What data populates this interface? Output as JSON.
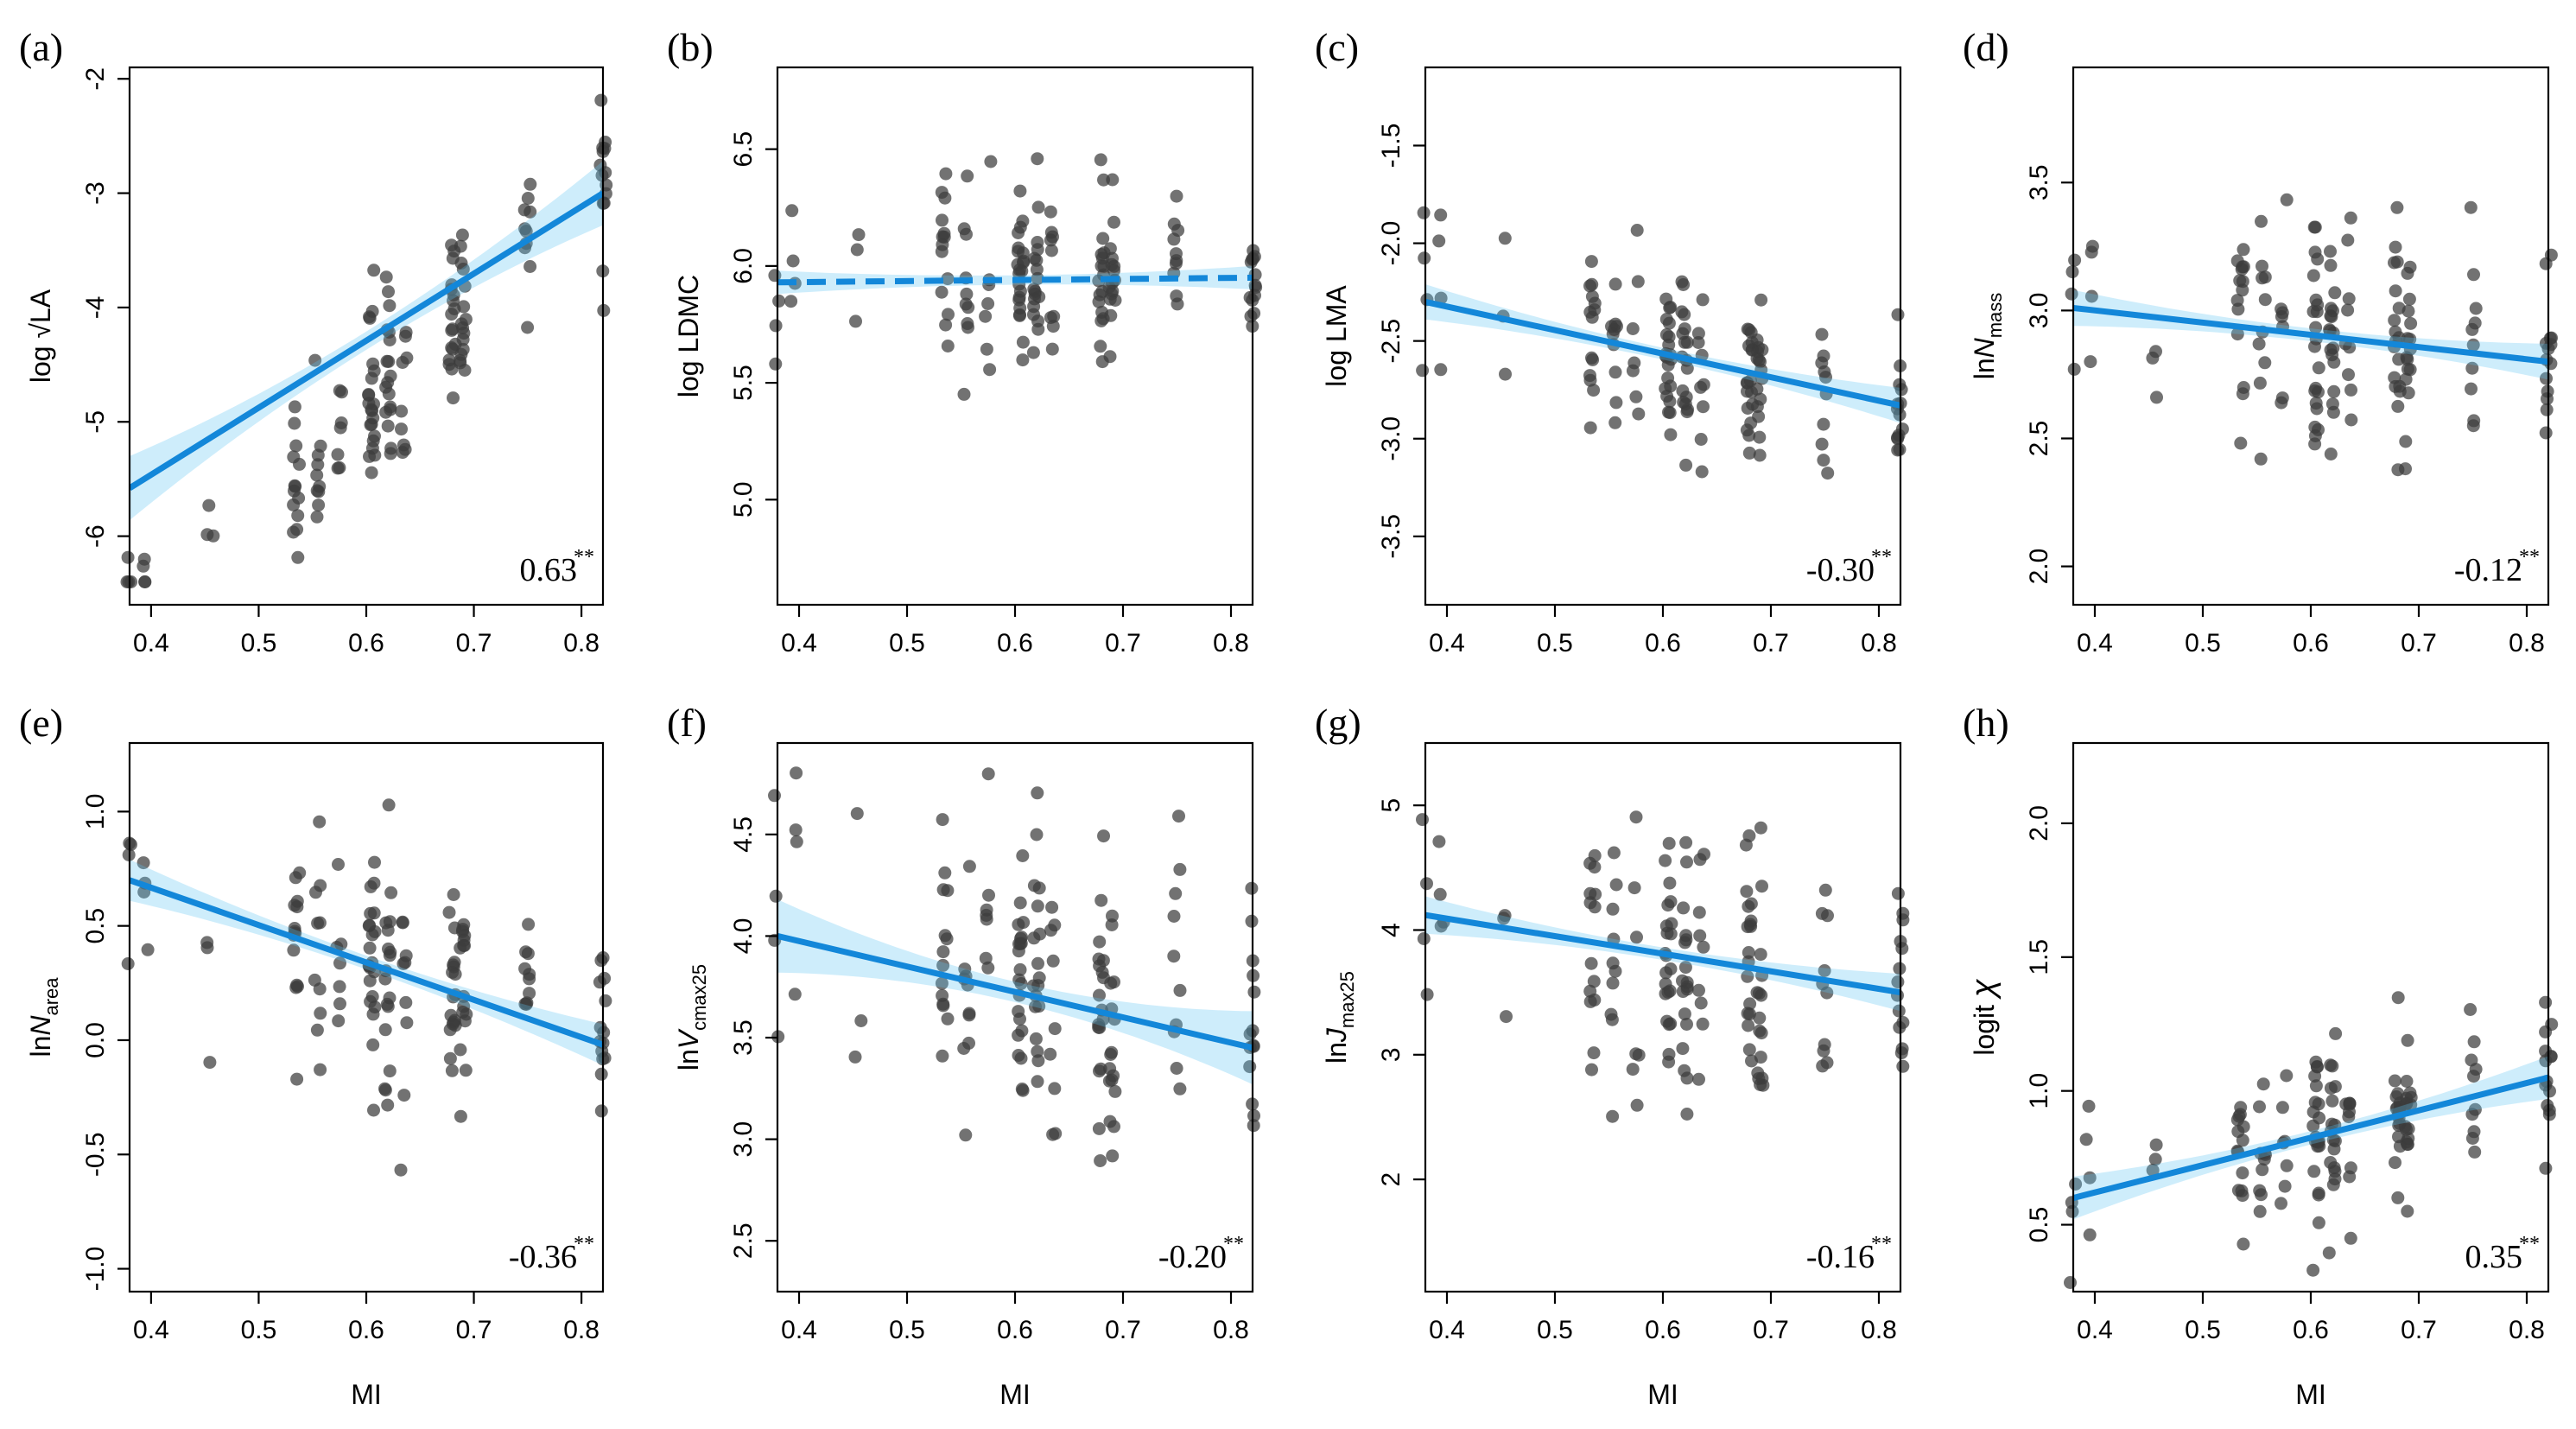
{
  "figure": {
    "colors": {
      "fit_line": "#1387d9",
      "ci_band": "#5ec2f2",
      "points": "#3c3c3c"
    }
  },
  "chart_data": [
    {
      "type": "scatter",
      "panel_label": "(a)",
      "ylabel": "log √LA",
      "ylabel_main": "log ",
      "ylabel_sub": "",
      "ylabel_radical": "√LA",
      "xlabel": "",
      "xlim": [
        0.38,
        0.82
      ],
      "ylim": [
        -6.6,
        -1.9
      ],
      "xticks": [
        0.4,
        0.5,
        0.6,
        0.7,
        0.8
      ],
      "xtick_labels": [
        "0.4",
        "0.5",
        "0.6",
        "0.7",
        "0.8"
      ],
      "yticks": [
        -6,
        -5,
        -4,
        -3,
        -2
      ],
      "ytick_labels": [
        "-6",
        "-5",
        "-4",
        "-3",
        "-2"
      ],
      "correlation": "0.63",
      "significance": "**",
      "fit": {
        "x": [
          0.38,
          0.82
        ],
        "y": [
          -5.58,
          -3.0
        ],
        "dashed": false,
        "ci_halfwidth_ends": 0.28,
        "ci_halfwidth_center": 0.08
      },
      "points_center": {
        "a": -10.0,
        "b": 8.6
      },
      "points_spread": [
        0.55,
        0.75
      ],
      "points_bounds": [
        -6.4,
        -2.1
      ],
      "seed": 11
    },
    {
      "type": "scatter",
      "panel_label": "(b)",
      "ylabel": "log LDMC",
      "ylabel_main": "log LDMC",
      "ylabel_sub": "",
      "ylabel_radical": "",
      "xlabel": "",
      "xlim": [
        0.38,
        0.82
      ],
      "ylim": [
        4.55,
        6.85
      ],
      "xticks": [
        0.4,
        0.5,
        0.6,
        0.7,
        0.8
      ],
      "xtick_labels": [
        "0.4",
        "0.5",
        "0.6",
        "0.7",
        "0.8"
      ],
      "yticks": [
        5.0,
        5.5,
        6.0,
        6.5
      ],
      "ytick_labels": [
        "5.0",
        "5.5",
        "6.0",
        "6.5"
      ],
      "correlation": "",
      "significance": "",
      "fit": {
        "x": [
          0.38,
          0.82
        ],
        "y": [
          5.93,
          5.95
        ],
        "dashed": true,
        "ci_halfwidth_ends": 0.05,
        "ci_halfwidth_center": 0.02
      },
      "points_center": {
        "a": 5.91,
        "b": 0.05
      },
      "points_spread": [
        0.22,
        0.3
      ],
      "points_bounds": [
        4.6,
        6.7
      ],
      "seed": 23
    },
    {
      "type": "scatter",
      "panel_label": "(c)",
      "ylabel": "log LMA",
      "ylabel_main": "log LMA",
      "ylabel_sub": "",
      "ylabel_radical": "",
      "xlabel": "",
      "xlim": [
        0.38,
        0.82
      ],
      "ylim": [
        -3.85,
        -1.1
      ],
      "xticks": [
        0.4,
        0.5,
        0.6,
        0.7,
        0.8
      ],
      "xtick_labels": [
        "0.4",
        "0.5",
        "0.6",
        "0.7",
        "0.8"
      ],
      "yticks": [
        -3.5,
        -3.0,
        -2.5,
        -2.0,
        -1.5
      ],
      "ytick_labels": [
        "-3.5",
        "-3.0",
        "-2.5",
        "-2.0",
        "-1.5"
      ],
      "correlation": "-0.30",
      "significance": "**",
      "fit": {
        "x": [
          0.38,
          0.82
        ],
        "y": [
          -2.3,
          -2.83
        ],
        "dashed": false,
        "ci_halfwidth_ends": 0.09,
        "ci_halfwidth_center": 0.03
      },
      "points_center": {
        "a": -1.85,
        "b": -1.2
      },
      "points_spread": [
        0.3,
        0.38
      ],
      "points_bounds": [
        -3.8,
        -1.15
      ],
      "seed": 37
    },
    {
      "type": "scatter",
      "panel_label": "(d)",
      "ylabel": "lnN_mass",
      "ylabel_main": "ln",
      "ylabel_italic": "N",
      "ylabel_sub": "mass",
      "ylabel_radical": "",
      "xlabel": "",
      "xlim": [
        0.38,
        0.82
      ],
      "ylim": [
        1.85,
        3.95
      ],
      "xticks": [
        0.4,
        0.5,
        0.6,
        0.7,
        0.8
      ],
      "xtick_labels": [
        "0.4",
        "0.5",
        "0.6",
        "0.7",
        "0.8"
      ],
      "yticks": [
        2.0,
        2.5,
        3.0,
        3.5
      ],
      "ytick_labels": [
        "2.0",
        "2.5",
        "3.0",
        "3.5"
      ],
      "correlation": "-0.12",
      "significance": "**",
      "fit": {
        "x": [
          0.38,
          0.82
        ],
        "y": [
          3.01,
          2.8
        ],
        "dashed": false,
        "ci_halfwidth_ends": 0.07,
        "ci_halfwidth_center": 0.025
      },
      "points_center": {
        "a": 3.2,
        "b": -0.48
      },
      "points_spread": [
        0.28,
        0.36
      ],
      "points_bounds": [
        1.9,
        3.87
      ],
      "seed": 41
    },
    {
      "type": "scatter",
      "panel_label": "(e)",
      "ylabel": "lnN_area",
      "ylabel_main": "ln",
      "ylabel_italic": "N",
      "ylabel_sub": "area",
      "ylabel_radical": "",
      "xlabel": "MI",
      "xlim": [
        0.38,
        0.82
      ],
      "ylim": [
        -1.1,
        1.3
      ],
      "xticks": [
        0.4,
        0.5,
        0.6,
        0.7,
        0.8
      ],
      "xtick_labels": [
        "0.4",
        "0.5",
        "0.6",
        "0.7",
        "0.8"
      ],
      "yticks": [
        -1.0,
        -0.5,
        0.0,
        0.5,
        1.0
      ],
      "ytick_labels": [
        "-1.0",
        "-0.5",
        "0.0",
        "0.5",
        "1.0"
      ],
      "correlation": "-0.36",
      "significance": "**",
      "fit": {
        "x": [
          0.38,
          0.82
        ],
        "y": [
          0.7,
          -0.02
        ],
        "dashed": false,
        "ci_halfwidth_ends": 0.09,
        "ci_halfwidth_center": 0.03
      },
      "points_center": {
        "a": 1.32,
        "b": -1.64
      },
      "points_spread": [
        0.35,
        0.45
      ],
      "points_bounds": [
        -1.05,
        1.22
      ],
      "seed": 53
    },
    {
      "type": "scatter",
      "panel_label": "(f)",
      "ylabel": "lnV_cmax25",
      "ylabel_main": "ln",
      "ylabel_italic": "V",
      "ylabel_sub": "cmax25",
      "ylabel_radical": "",
      "xlabel": "MI",
      "xlim": [
        0.38,
        0.82
      ],
      "ylim": [
        2.25,
        4.95
      ],
      "xticks": [
        0.4,
        0.5,
        0.6,
        0.7,
        0.8
      ],
      "xtick_labels": [
        "0.4",
        "0.5",
        "0.6",
        "0.7",
        "0.8"
      ],
      "yticks": [
        2.5,
        3.0,
        3.5,
        4.0,
        4.5
      ],
      "ytick_labels": [
        "2.5",
        "3.0",
        "3.5",
        "4.0",
        "4.5"
      ],
      "correlation": "-0.20",
      "significance": "**",
      "fit": {
        "x": [
          0.38,
          0.82
        ],
        "y": [
          4.0,
          3.45
        ],
        "dashed": false,
        "ci_halfwidth_ends": 0.18,
        "ci_halfwidth_center": 0.05
      },
      "points_center": {
        "a": 4.48,
        "b": -1.25
      },
      "points_spread": [
        0.5,
        0.6
      ],
      "points_bounds": [
        2.3,
        4.88
      ],
      "seed": 67
    },
    {
      "type": "scatter",
      "panel_label": "(g)",
      "ylabel": "lnJ_max25",
      "ylabel_main": "ln",
      "ylabel_italic": "J",
      "ylabel_sub": "max25",
      "ylabel_radical": "",
      "xlabel": "MI",
      "xlim": [
        0.38,
        0.82
      ],
      "ylim": [
        1.1,
        5.5
      ],
      "xticks": [
        0.4,
        0.5,
        0.6,
        0.7,
        0.8
      ],
      "xtick_labels": [
        "0.4",
        "0.5",
        "0.6",
        "0.7",
        "0.8"
      ],
      "yticks": [
        2,
        3,
        4,
        5
      ],
      "ytick_labels": [
        "2",
        "3",
        "4",
        "5"
      ],
      "correlation": "-0.16",
      "significance": "**",
      "fit": {
        "x": [
          0.38,
          0.82
        ],
        "y": [
          4.12,
          3.5
        ],
        "dashed": false,
        "ci_halfwidth_ends": 0.15,
        "ci_halfwidth_center": 0.05
      },
      "points_center": {
        "a": 4.66,
        "b": -1.41
      },
      "points_spread": [
        0.7,
        0.85
      ],
      "points_bounds": [
        1.2,
        5.4
      ],
      "seed": 79
    },
    {
      "type": "scatter",
      "panel_label": "(h)",
      "ylabel": "logit χ",
      "ylabel_main": "logit ",
      "ylabel_greek": "χ",
      "ylabel_sub": "",
      "ylabel_radical": "",
      "xlabel": "MI",
      "xlim": [
        0.38,
        0.82
      ],
      "ylim": [
        0.25,
        2.3
      ],
      "xticks": [
        0.4,
        0.5,
        0.6,
        0.7,
        0.8
      ],
      "xtick_labels": [
        "0.4",
        "0.5",
        "0.6",
        "0.7",
        "0.8"
      ],
      "yticks": [
        0.5,
        1.0,
        1.5,
        2.0
      ],
      "ytick_labels": [
        "0.5",
        "1.0",
        "1.5",
        "2.0"
      ],
      "correlation": "0.35",
      "significance": "**",
      "fit": {
        "x": [
          0.38,
          0.82
        ],
        "y": [
          0.6,
          1.05
        ],
        "dashed": false,
        "ci_halfwidth_ends": 0.08,
        "ci_halfwidth_center": 0.025
      },
      "points_center": {
        "a": 0.21,
        "b": 1.02
      },
      "points_spread": [
        0.22,
        0.3
      ],
      "points_bounds": [
        0.28,
        2.22
      ],
      "seed": 97
    }
  ],
  "mi_sample_levels": [
    0.38,
    0.395,
    0.455,
    0.535,
    0.555,
    0.575,
    0.605,
    0.62,
    0.635,
    0.68,
    0.69,
    0.75,
    0.82
  ],
  "mi_sample_counts": [
    4,
    4,
    3,
    14,
    10,
    7,
    22,
    18,
    9,
    18,
    16,
    10,
    14
  ]
}
